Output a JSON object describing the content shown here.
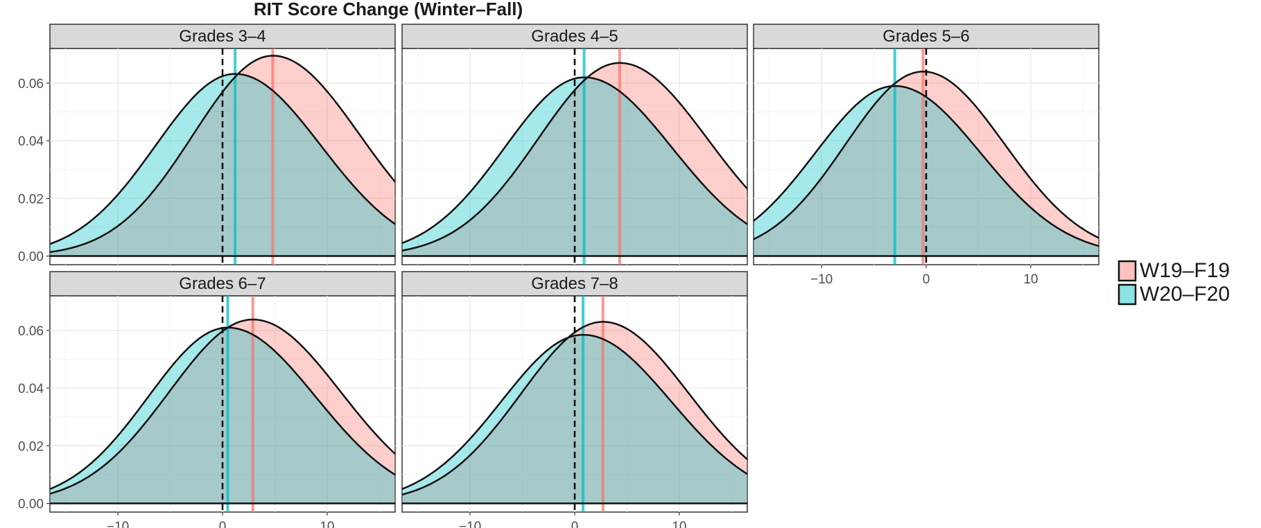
{
  "chart_data": {
    "type": "area",
    "title": "RIT Score Change (Winter–Fall)",
    "xlabel": "",
    "ylabel": "",
    "xlim": [
      -16.5,
      16.5
    ],
    "ylim": [
      -0.003,
      0.072
    ],
    "x_ticks": [
      -10,
      0,
      10
    ],
    "y_ticks": [
      0.0,
      0.02,
      0.04,
      0.06
    ],
    "x_tick_labels": [
      "−10",
      "0",
      "10"
    ],
    "y_tick_labels": [
      "0.00",
      "0.02",
      "0.04",
      "0.06"
    ],
    "grid": true,
    "reference_line_x": 0,
    "legend": {
      "position": "right",
      "entries": [
        {
          "label": "W19–F19",
          "color": "#F8766D"
        },
        {
          "label": "W20–F20",
          "color": "#00BFC4"
        }
      ]
    },
    "panels": [
      {
        "label": "Grades 3–4",
        "series": [
          {
            "name": "W19–F19",
            "mean": 4.8,
            "peak": 0.0695,
            "sd_left": 7.6,
            "sd_right": 8.3
          },
          {
            "name": "W20–F20",
            "mean": 1.2,
            "peak": 0.0632,
            "sd_left": 7.6,
            "sd_right": 8.2
          }
        ]
      },
      {
        "label": "Grades 4–5",
        "series": [
          {
            "name": "W19–F19",
            "mean": 4.3,
            "peak": 0.067,
            "sd_left": 7.8,
            "sd_right": 8.4
          },
          {
            "name": "W20–F20",
            "mean": 0.9,
            "peak": 0.062,
            "sd_left": 7.6,
            "sd_right": 8.4
          }
        ]
      },
      {
        "label": "Grades 5–6",
        "series": [
          {
            "name": "W19–F19",
            "mean": -0.3,
            "peak": 0.064,
            "sd_left": 7.4,
            "sd_right": 7.8
          },
          {
            "name": "W20–F20",
            "mean": -3.0,
            "peak": 0.059,
            "sd_left": 7.6,
            "sd_right": 8.2
          }
        ]
      },
      {
        "label": "Grades 6–7",
        "series": [
          {
            "name": "W19–F19",
            "mean": 2.9,
            "peak": 0.0638,
            "sd_left": 8.0,
            "sd_right": 8.4
          },
          {
            "name": "W20–F20",
            "mean": 0.5,
            "peak": 0.061,
            "sd_left": 7.6,
            "sd_right": 8.4
          }
        ]
      },
      {
        "label": "Grades 7–8",
        "series": [
          {
            "name": "W19–F19",
            "mean": 2.7,
            "peak": 0.063,
            "sd_left": 7.8,
            "sd_right": 8.2
          },
          {
            "name": "W20–F20",
            "mean": 0.8,
            "peak": 0.0585,
            "sd_left": 7.8,
            "sd_right": 8.4
          }
        ]
      }
    ]
  }
}
